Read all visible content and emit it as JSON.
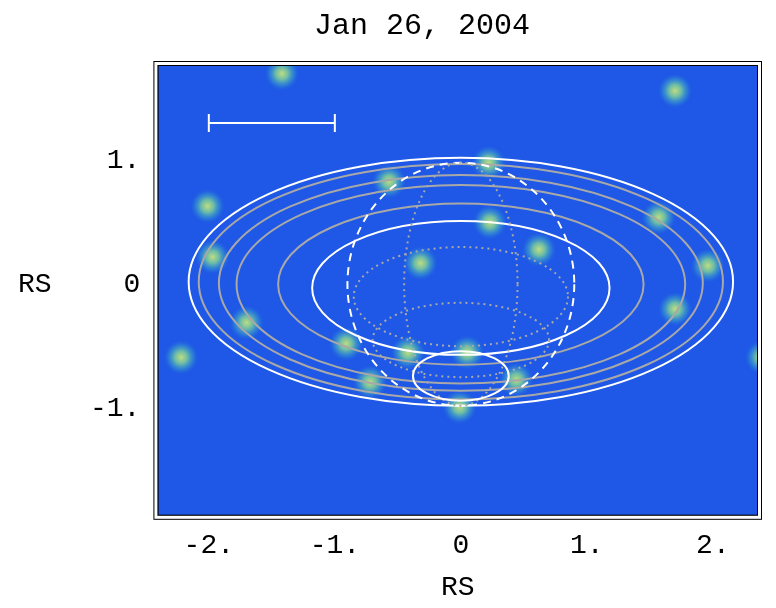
{
  "chart_data": {
    "type": "scatter",
    "title": "Jan 26, 2004",
    "x_label": "RS",
    "y_label": "RS",
    "xlim": [
      -2.4,
      2.35
    ],
    "ylim": [
      -1.86,
      1.76
    ],
    "xticks": [
      {
        "value": -2,
        "label": "-2."
      },
      {
        "value": -1,
        "label": "-1."
      },
      0,
      {
        "value": 1,
        "label": "1."
      },
      {
        "value": 2,
        "label": "2."
      }
    ],
    "yticks": [
      {
        "value": -1,
        "label": "-1."
      },
      0,
      {
        "value": 1,
        "label": "1."
      }
    ],
    "grid": false,
    "background": "#1f58e6",
    "sources": {
      "marker": "blob",
      "x": [
        -1.42,
        1.7,
        -2.01,
        -0.57,
        0.22,
        0.23,
        0.62,
        -0.32,
        1.57,
        1.96,
        1.7,
        -1.97,
        -1.7,
        -2.22,
        -0.91,
        -0.42,
        0.05,
        0.44,
        -0.72,
        -0.01,
        2.39
      ],
      "y": [
        1.7,
        1.56,
        0.63,
        0.83,
        0.98,
        0.5,
        0.28,
        0.17,
        0.54,
        0.15,
        -0.2,
        0.22,
        -0.31,
        -0.59,
        -0.48,
        -0.55,
        -0.55,
        -0.77,
        -0.79,
        -0.99,
        -0.59
      ]
    },
    "ellipses": [
      {
        "cx": 0.0,
        "cy": 0.02,
        "rx": 2.16,
        "ry": 1.0,
        "color": "#ffffff",
        "line_style": "solid"
      },
      {
        "cx": 0.0,
        "cy": 0.02,
        "rx": 2.08,
        "ry": 0.95,
        "color": "#a8a8a8",
        "line_style": "solid"
      },
      {
        "cx": 0.0,
        "cy": 0.01,
        "rx": 1.92,
        "ry": 0.87,
        "color": "#a8a8a8",
        "line_style": "solid"
      },
      {
        "cx": 0.0,
        "cy": 0.0,
        "rx": 1.78,
        "ry": 0.8,
        "color": "#a8a8a8",
        "line_style": "solid"
      },
      {
        "cx": 0.0,
        "cy": 0.0,
        "rx": 1.45,
        "ry": 0.65,
        "color": "#a8a8a8",
        "line_style": "solid"
      },
      {
        "cx": 0.0,
        "cy": -0.03,
        "rx": 1.18,
        "ry": 0.54,
        "color": "#ffffff",
        "line_style": "solid"
      },
      {
        "cx": 0.0,
        "cy": 0.0,
        "rx": 0.9,
        "ry": 0.98,
        "color": "#ffffff",
        "line_style": "dashed"
      },
      {
        "cx": 0.0,
        "cy": 0.0,
        "rx": 0.45,
        "ry": 0.98,
        "color": "#a8a8a8",
        "line_style": "dotted"
      },
      {
        "cx": 0.0,
        "cy": -0.1,
        "rx": 0.85,
        "ry": 0.4,
        "color": "#a8a8a8",
        "line_style": "dotted"
      },
      {
        "cx": 0.0,
        "cy": -0.45,
        "rx": 0.7,
        "ry": 0.3,
        "color": "#a8a8a8",
        "line_style": "dotted"
      },
      {
        "cx": 0.0,
        "cy": -0.74,
        "rx": 0.38,
        "ry": 0.2,
        "color": "#ffffff",
        "line_style": "solid"
      }
    ],
    "scale_bar": {
      "x": [
        -2,
        -1
      ],
      "y": 1.3,
      "color": "#ffffff"
    }
  }
}
